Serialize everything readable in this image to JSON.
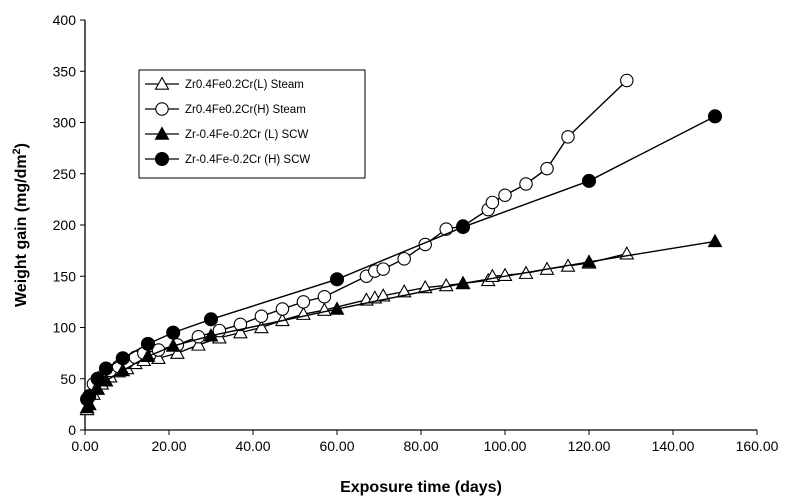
{
  "chart_data": {
    "type": "scatter",
    "title": "",
    "xlabel": "Exposure time (days)",
    "ylabel_main": "Weight gain (mg/dm",
    "ylabel_sup": "2",
    "ylabel_end": ")",
    "xlim": [
      0,
      160
    ],
    "ylim": [
      0,
      400
    ],
    "x_ticks": [
      "0.00",
      "20.00",
      "40.00",
      "60.00",
      "80.00",
      "100.00",
      "120.00",
      "140.00",
      "160.00"
    ],
    "y_ticks": [
      "0",
      "50",
      "100",
      "150",
      "200",
      "250",
      "300",
      "350",
      "400"
    ],
    "x_tick_values": [
      0,
      20,
      40,
      60,
      80,
      100,
      120,
      140,
      160
    ],
    "y_tick_values": [
      0,
      50,
      100,
      150,
      200,
      250,
      300,
      350,
      400
    ],
    "grid": false,
    "legend_position": "top-left",
    "series": [
      {
        "name": "Zr0.4Fe0.2Cr(L) Steam",
        "marker": "triangle-open",
        "x": [
          0.5,
          1,
          2,
          3,
          4,
          6,
          8,
          10,
          12,
          14,
          17.5,
          22,
          27,
          32,
          37,
          42,
          47,
          52,
          57,
          67,
          69,
          71,
          76,
          81,
          86,
          90,
          96,
          97,
          100,
          105,
          110,
          115,
          120,
          129
        ],
        "y": [
          20,
          25,
          35,
          40,
          45,
          52,
          57,
          60,
          65,
          68,
          70,
          75,
          83,
          90,
          95,
          100,
          107,
          113,
          117,
          127,
          129,
          131,
          135,
          139,
          141,
          143,
          146,
          150,
          151,
          153,
          157,
          160,
          163,
          172
        ]
      },
      {
        "name": "Zr0.4Fe0.2Cr(H) Steam",
        "marker": "circle-open",
        "x": [
          0.5,
          2,
          4,
          6,
          8,
          10,
          12,
          14,
          17.5,
          22,
          27,
          32,
          37,
          42,
          47,
          52,
          57,
          67,
          69,
          71,
          76,
          81,
          86,
          90,
          96,
          97,
          100,
          105,
          110,
          115,
          129
        ],
        "y": [
          30,
          45,
          52,
          58,
          62,
          66,
          71,
          75,
          78,
          83,
          91,
          97,
          103,
          111,
          118,
          125,
          130,
          150,
          155,
          157,
          167,
          181,
          196,
          199,
          215,
          222,
          229,
          240,
          255,
          286,
          341
        ]
      },
      {
        "name": "Zr-0.4Fe-0.2Cr (L) SCW",
        "marker": "triangle-filled",
        "x": [
          0.5,
          1,
          3,
          5,
          9,
          15,
          21,
          30,
          60,
          90,
          120,
          150
        ],
        "y": [
          22,
          25,
          40,
          48,
          58,
          72,
          82,
          92,
          118,
          143,
          164,
          184
        ]
      },
      {
        "name": "Zr-0.4Fe-0.2Cr (H) SCW",
        "marker": "circle-filled",
        "x": [
          0.5,
          1,
          3,
          5,
          9,
          15,
          21,
          30,
          60,
          90,
          120,
          150
        ],
        "y": [
          30,
          33,
          50,
          60,
          70,
          84,
          95,
          108,
          147,
          198,
          243,
          306
        ]
      }
    ]
  }
}
